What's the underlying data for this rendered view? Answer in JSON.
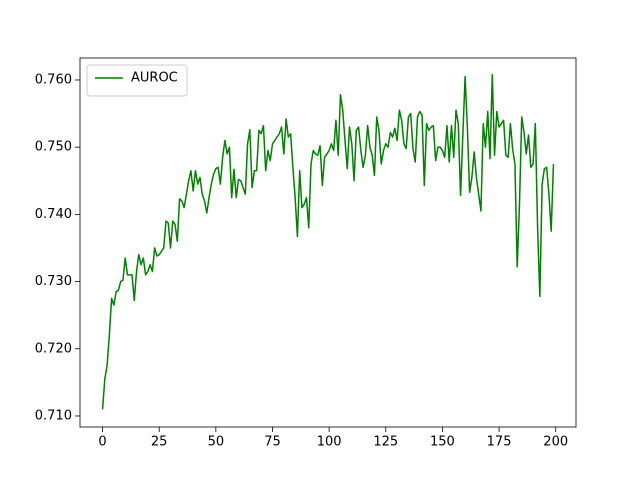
{
  "chart_data": {
    "type": "line",
    "x": [
      0,
      1,
      2,
      3,
      4,
      5,
      6,
      7,
      8,
      9,
      10,
      11,
      12,
      13,
      14,
      15,
      16,
      17,
      18,
      19,
      20,
      21,
      22,
      23,
      24,
      25,
      26,
      27,
      28,
      29,
      30,
      31,
      32,
      33,
      34,
      35,
      36,
      37,
      38,
      39,
      40,
      41,
      42,
      43,
      44,
      45,
      46,
      47,
      48,
      49,
      50,
      51,
      52,
      53,
      54,
      55,
      56,
      57,
      58,
      59,
      60,
      61,
      62,
      63,
      64,
      65,
      66,
      67,
      68,
      69,
      70,
      71,
      72,
      73,
      74,
      75,
      76,
      77,
      78,
      79,
      80,
      81,
      82,
      83,
      84,
      85,
      86,
      87,
      88,
      89,
      90,
      91,
      92,
      93,
      94,
      95,
      96,
      97,
      98,
      99,
      100,
      101,
      102,
      103,
      104,
      105,
      106,
      107,
      108,
      109,
      110,
      111,
      112,
      113,
      114,
      115,
      116,
      117,
      118,
      119,
      120,
      121,
      122,
      123,
      124,
      125,
      126,
      127,
      128,
      129,
      130,
      131,
      132,
      133,
      134,
      135,
      136,
      137,
      138,
      139,
      140,
      141,
      142,
      143,
      144,
      145,
      146,
      147,
      148,
      149,
      150,
      151,
      152,
      153,
      154,
      155,
      156,
      157,
      158,
      159,
      160,
      161,
      162,
      163,
      164,
      165,
      166,
      167,
      168,
      169,
      170,
      171,
      172,
      173,
      174,
      175,
      176,
      177,
      178,
      179,
      180,
      181,
      182,
      183,
      184,
      185,
      186,
      187,
      188,
      189,
      190,
      191,
      192,
      193,
      194,
      195,
      196,
      197,
      198,
      199
    ],
    "series": [
      {
        "name": "AUROC",
        "color": "#008000",
        "values": [
          0.711,
          0.7155,
          0.7175,
          0.722,
          0.7275,
          0.7265,
          0.7285,
          0.7287,
          0.73,
          0.7302,
          0.7335,
          0.731,
          0.731,
          0.731,
          0.7272,
          0.7315,
          0.734,
          0.7325,
          0.7335,
          0.731,
          0.7315,
          0.7325,
          0.7315,
          0.735,
          0.7338,
          0.734,
          0.7345,
          0.735,
          0.739,
          0.7387,
          0.735,
          0.739,
          0.7385,
          0.736,
          0.7423,
          0.742,
          0.741,
          0.743,
          0.745,
          0.7465,
          0.7435,
          0.7465,
          0.7445,
          0.7455,
          0.743,
          0.742,
          0.7402,
          0.7425,
          0.7445,
          0.746,
          0.7468,
          0.747,
          0.7445,
          0.7485,
          0.751,
          0.749,
          0.75,
          0.7425,
          0.7467,
          0.7425,
          0.7452,
          0.745,
          0.744,
          0.743,
          0.7505,
          0.7526,
          0.744,
          0.7465,
          0.7465,
          0.7525,
          0.752,
          0.7532,
          0.7465,
          0.7495,
          0.748,
          0.7505,
          0.751,
          0.7515,
          0.752,
          0.753,
          0.749,
          0.7542,
          0.7515,
          0.752,
          0.747,
          0.7425,
          0.7367,
          0.7465,
          0.741,
          0.7415,
          0.7425,
          0.738,
          0.7475,
          0.7495,
          0.749,
          0.7488,
          0.7502,
          0.7443,
          0.7485,
          0.749,
          0.7495,
          0.7505,
          0.7495,
          0.754,
          0.7488,
          0.7578,
          0.7555,
          0.751,
          0.7468,
          0.753,
          0.7505,
          0.745,
          0.7525,
          0.753,
          0.7495,
          0.747,
          0.7488,
          0.7532,
          0.75,
          0.7488,
          0.7458,
          0.7545,
          0.7525,
          0.7475,
          0.7495,
          0.7505,
          0.75,
          0.7522,
          0.7515,
          0.7528,
          0.751,
          0.7555,
          0.754,
          0.7505,
          0.7498,
          0.7545,
          0.755,
          0.7498,
          0.7478,
          0.7545,
          0.7553,
          0.7548,
          0.7443,
          0.7535,
          0.7525,
          0.753,
          0.7532,
          0.748,
          0.75,
          0.75,
          0.7495,
          0.7485,
          0.7532,
          0.7478,
          0.7532,
          0.7485,
          0.7555,
          0.7535,
          0.7428,
          0.7517,
          0.7605,
          0.753,
          0.7433,
          0.7455,
          0.7493,
          0.7455,
          0.743,
          0.7405,
          0.7535,
          0.75,
          0.7553,
          0.7483,
          0.7608,
          0.7488,
          0.7553,
          0.753,
          0.7535,
          0.754,
          0.7488,
          0.7485,
          0.7535,
          0.7497,
          0.7475,
          0.7322,
          0.7415,
          0.7545,
          0.7522,
          0.749,
          0.7518,
          0.747,
          0.7475,
          0.7535,
          0.738,
          0.7278,
          0.7445,
          0.7468,
          0.747,
          0.743,
          0.7375,
          0.7475
        ]
      }
    ],
    "xlim": [
      -9.95,
      208.95
    ],
    "xticks": [
      0,
      25,
      50,
      75,
      100,
      125,
      150,
      175,
      200
    ],
    "ylim": [
      0.70836,
      0.76327
    ],
    "yticks": [
      {
        "value": 0.71,
        "label": "0.710"
      },
      {
        "value": 0.72,
        "label": "0.720"
      },
      {
        "value": 0.73,
        "label": "0.730"
      },
      {
        "value": 0.74,
        "label": "0.740"
      },
      {
        "value": 0.75,
        "label": "0.750"
      },
      {
        "value": 0.76,
        "label": "0.760"
      }
    ],
    "legend": "upper left",
    "grid": false
  }
}
